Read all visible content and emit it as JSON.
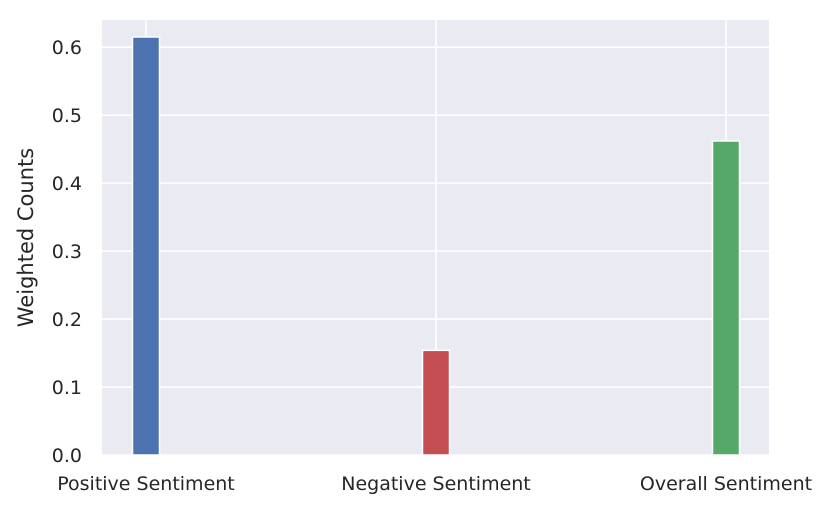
{
  "chart_data": {
    "type": "bar",
    "title": "",
    "xlabel": "",
    "ylabel": "Weighted Counts",
    "categories": [
      "Positive Sentiment",
      "Negative Sentiment",
      "Overall Sentiment"
    ],
    "values": [
      0.615,
      0.154,
      0.462
    ],
    "colors": [
      "#4c72b0",
      "#c44e52",
      "#55a868"
    ],
    "ylim": [
      0,
      0.64
    ],
    "yticks": [
      "0.0",
      "0.1",
      "0.2",
      "0.3",
      "0.4",
      "0.5",
      "0.6"
    ],
    "grid": true,
    "background": "#eaeaf2",
    "legend": "none"
  }
}
